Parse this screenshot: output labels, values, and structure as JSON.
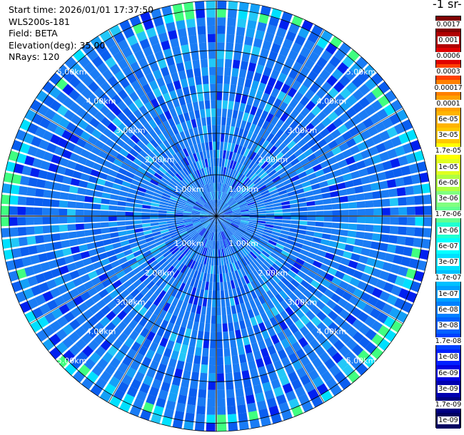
{
  "info": {
    "start_time": "Start time: 2026/01/01 17:37:50",
    "instrument": "WLS200s-181",
    "field": "Field: BETA",
    "elevation": "Elevation(deg): 35.00",
    "nrays": "NRays: 120"
  },
  "colorbar": {
    "title": "-1 sr-",
    "labels": [
      "0.0017",
      "0.001",
      "0.0006",
      "0.0003",
      "0.00017",
      "0.0001",
      "6e-05",
      "3e-05",
      "1.7e-05",
      "1e-05",
      "6e-06",
      "3e-06",
      "1.7e-06",
      "1e-06",
      "6e-07",
      "3e-07",
      "1.7e-07",
      "1e-07",
      "6e-08",
      "3e-08",
      "1.7e-08",
      "1e-08",
      "6e-09",
      "3e-09",
      "1.7e-09",
      "1e-09"
    ],
    "colors": [
      "#800000",
      "#b00000",
      "#e00000",
      "#ff4000",
      "#ff8000",
      "#ffa000",
      "#ffb400",
      "#ffc800",
      "#ffff00",
      "#e0ff20",
      "#b0ff40",
      "#80ff80",
      "#60ff90",
      "#20ffd0",
      "#00ffff",
      "#00e0ff",
      "#00c0ff",
      "#00a0ff",
      "#0080ff",
      "#0060ff",
      "#0040ff",
      "#0020ff",
      "#0000e0",
      "#0000b0",
      "#000080",
      "#000060"
    ]
  },
  "chart_data": {
    "type": "polar-ppi",
    "field": "BETA",
    "nrays": 120,
    "range_unit": "km",
    "max_range_km": 5.2,
    "range_rings_km": [
      1.0,
      2.0,
      3.0,
      4.0,
      5.0
    ],
    "range_ring_labels": [
      "1.00km",
      "2.00km",
      "3.00km",
      "4.00km",
      "5.00km"
    ],
    "dominant_value": "3e-08",
    "colorscale": "log"
  }
}
